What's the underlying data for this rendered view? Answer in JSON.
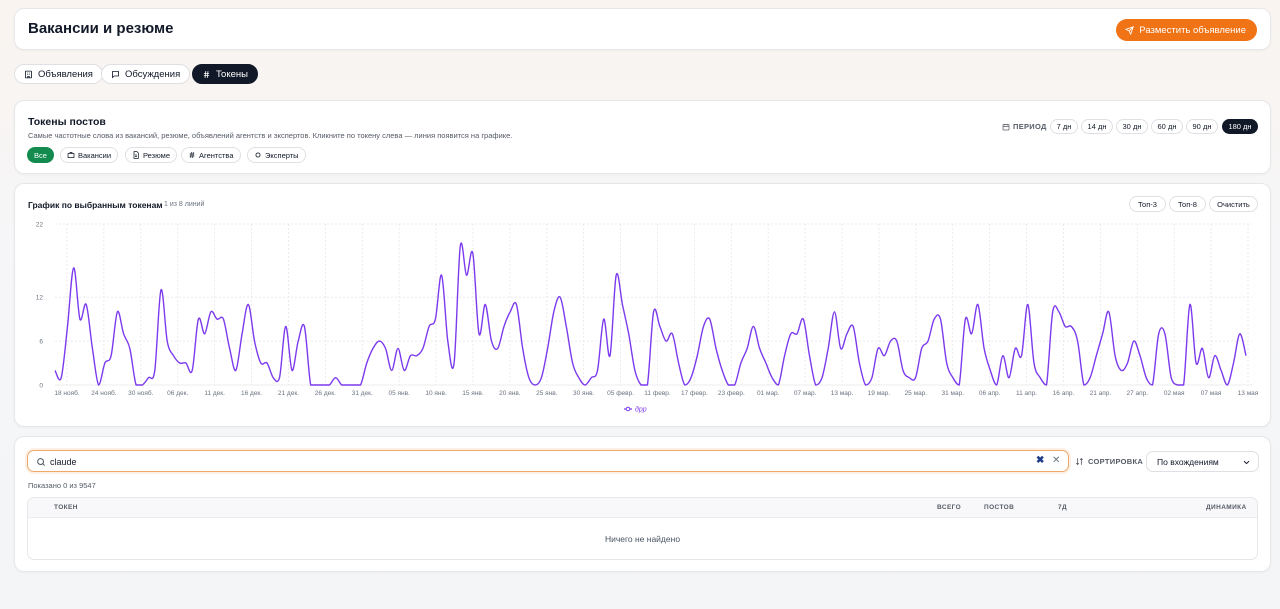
{
  "header": {
    "title": "Вакансии и резюме",
    "post_button": "Разместить объявление"
  },
  "tabs": [
    {
      "label": "Объявления",
      "icon": "building-icon",
      "active": false
    },
    {
      "label": "Обсуждения",
      "icon": "chat-icon",
      "active": false
    },
    {
      "label": "Токены",
      "icon": "hash-icon",
      "active": true
    }
  ],
  "tokens": {
    "title": "Токены постов",
    "subtitle": "Самые частотные слова из вакансий, резюме, объявлений агентств и экспертов. Кликните по токену слева — линия появится на графике.",
    "filters": [
      {
        "label": "Все",
        "icon": "",
        "active": true
      },
      {
        "label": "Вакансии",
        "icon": "briefcase-icon",
        "active": false
      },
      {
        "label": "Резюме",
        "icon": "document-icon",
        "active": false
      },
      {
        "label": "Агентства",
        "icon": "hash-icon",
        "active": false
      },
      {
        "label": "Эксперты",
        "icon": "sparkle-icon",
        "active": false
      }
    ],
    "period_label": "ПЕРИОД",
    "periods": [
      {
        "label": "7 дн",
        "active": false
      },
      {
        "label": "14 дн",
        "active": false
      },
      {
        "label": "30 дн",
        "active": false
      },
      {
        "label": "60 дн",
        "active": false
      },
      {
        "label": "90 дн",
        "active": false
      },
      {
        "label": "180 дн",
        "active": true
      }
    ]
  },
  "chart_panel": {
    "title": "График по выбранным токенам",
    "lines_info": "1 из 8 линий",
    "buttons": {
      "top3": "Топ-3",
      "top8": "Топ-8",
      "clear": "Очистить"
    }
  },
  "chart_data": {
    "type": "line",
    "ylim": [
      0,
      22
    ],
    "y_ticks": [
      "0",
      "6",
      "12",
      "22"
    ],
    "x_ticks": [
      "18 нояб.",
      "24 нояб.",
      "30 нояб.",
      "06 дек.",
      "11 дек.",
      "16 дек.",
      "21 дек.",
      "26 дек.",
      "31 дек.",
      "05 янв.",
      "10 янв.",
      "15 янв.",
      "20 янв.",
      "25 янв.",
      "30 янв.",
      "05 февр.",
      "11 февр.",
      "17 февр.",
      "23 февр.",
      "01 мар.",
      "07 мар.",
      "13 мар.",
      "19 мар.",
      "25 мар.",
      "31 мар.",
      "06 апр.",
      "11 апр.",
      "16 апр.",
      "21 апр.",
      "27 апр.",
      "02 мая",
      "07 мая",
      "13 мая"
    ],
    "grid": true,
    "legend_position": "bottom",
    "colors": {
      "line": "#7c3aed",
      "grid": "#e6e6ea"
    },
    "series": [
      {
        "name": "дрр",
        "values": [
          2,
          1,
          8,
          16,
          9,
          11,
          5,
          0,
          3,
          4,
          10,
          7,
          5,
          0,
          0,
          1,
          2,
          13,
          6,
          4,
          3,
          3,
          2,
          9,
          7,
          10,
          9,
          9,
          5,
          2,
          7,
          11,
          6,
          3,
          3,
          1,
          1,
          8,
          2,
          6,
          8,
          0,
          0,
          0,
          0,
          1,
          0,
          0,
          0,
          0,
          3,
          5,
          6,
          5,
          2,
          5,
          2,
          4,
          4,
          5,
          8,
          9,
          15,
          6,
          3,
          19,
          15,
          18,
          7,
          11,
          6,
          5,
          8,
          10,
          11,
          5,
          1,
          0,
          1,
          5,
          10,
          12,
          8,
          3,
          1,
          0,
          1,
          2,
          9,
          4,
          15,
          11,
          7,
          2,
          0,
          0,
          10,
          8,
          6,
          7,
          3,
          0,
          1,
          4,
          8,
          9,
          5,
          2,
          0,
          0,
          3,
          5,
          8,
          5,
          3,
          1,
          0,
          4,
          7,
          7,
          9,
          4,
          0,
          1,
          5,
          10,
          5,
          7,
          8,
          3,
          0,
          1,
          5,
          4,
          6,
          6,
          2,
          1,
          1,
          5,
          6,
          9,
          9,
          3,
          1,
          0,
          9,
          7,
          11,
          5,
          2,
          0,
          4,
          1,
          5,
          4,
          11,
          3,
          1,
          0,
          10,
          10,
          8,
          8,
          6,
          0,
          1,
          4,
          7,
          10,
          4,
          2,
          3,
          6,
          4,
          1,
          0,
          7,
          7,
          1,
          0,
          0,
          11,
          3,
          5,
          1,
          4,
          2,
          0,
          3,
          7,
          4
        ]
      }
    ]
  },
  "search": {
    "value": "claude",
    "placeholder": "",
    "sort_label": "СОРТИРОВКА",
    "sort_value": "По вхождениям",
    "shown_text": "Показано 0 из 9547"
  },
  "table": {
    "columns": {
      "token": "ТОКЕН",
      "total": "ВСЕГО",
      "posts": "ПОСТОВ",
      "d7": "7Д",
      "trend": "ДИНАМИКА"
    },
    "empty_text": "Ничего не найдено"
  }
}
